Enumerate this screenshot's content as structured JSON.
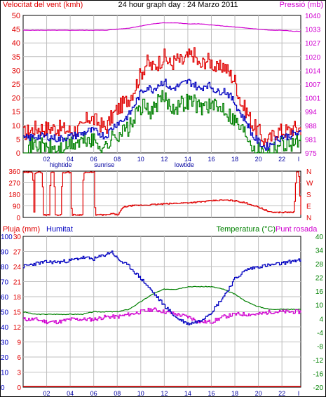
{
  "colors": {
    "wind": "#e00000",
    "gust": "#e00000",
    "speed_avg": "#0000c0",
    "speed_min": "#008000",
    "pressure": "#d000d0",
    "direction": "#e00000",
    "humidity": "#0000c0",
    "temperature": "#008000",
    "dewpoint": "#d000d0",
    "rain": "#e00000",
    "grid": "#bfbfbf",
    "frame": "#000000"
  },
  "chart_data": [
    {
      "type": "line",
      "title": "24 hour graph day : 24 Marzo 2011",
      "ylabel_left": "Velocitat del vent (kmh)",
      "ylabel_right": "Pressió (mb)",
      "ylim": [
        0,
        50
      ],
      "yticks_left": [
        "0",
        "5",
        "10",
        "15",
        "20",
        "25",
        "30",
        "35",
        "40",
        "45",
        "50"
      ],
      "yticks_right": [
        "975",
        "981",
        "988",
        "994",
        "1001",
        "1007",
        "1014",
        "1020",
        "1027",
        "1033",
        "1040"
      ],
      "ylim_right": [
        975,
        1040
      ],
      "xlim": [
        0,
        23.6
      ],
      "xticks": [
        "02",
        "04",
        "06",
        "08",
        "10",
        "12",
        "14",
        "16",
        "18",
        "20",
        "22",
        "I"
      ],
      "events": [
        {
          "label": "hightide",
          "x": 3.2
        },
        {
          "label": "sunrise",
          "x": 6.9
        },
        {
          "label": "lowtide",
          "x": 13.7
        }
      ],
      "series": [
        {
          "key": "gust",
          "x": [
            0,
            1,
            2,
            3,
            4,
            5,
            5.5,
            6,
            7,
            7.5,
            8,
            8.5,
            9,
            9.5,
            10,
            10.5,
            11,
            11.5,
            12,
            12.5,
            13,
            13.5,
            14,
            14.5,
            15,
            15.5,
            16,
            16.5,
            17,
            17.5,
            18,
            18.5,
            19,
            19.5,
            20,
            20.5,
            21,
            21.5,
            22,
            22.5,
            23,
            23.6
          ],
          "values": [
            7,
            9,
            9,
            9,
            8,
            9,
            13,
            12,
            9,
            13,
            16,
            18,
            20,
            24,
            29,
            33,
            31,
            33,
            35,
            32,
            34,
            33,
            35,
            36,
            31,
            34,
            33,
            30,
            32,
            29,
            26,
            18,
            15,
            10,
            8,
            4,
            5,
            8,
            8,
            8,
            9,
            9
          ]
        },
        {
          "key": "speed_avg",
          "x": [
            0,
            1,
            2,
            3,
            4,
            5,
            5.5,
            6,
            7,
            7.5,
            8,
            8.5,
            9,
            9.5,
            10,
            10.5,
            11,
            11.5,
            12,
            12.5,
            13,
            13.5,
            14,
            14.5,
            15,
            15.5,
            16,
            16.5,
            17,
            17.5,
            18,
            18.5,
            19,
            19.5,
            20,
            20.5,
            21,
            21.5,
            22,
            22.5,
            23,
            23.6
          ],
          "values": [
            5,
            6,
            6,
            5,
            6,
            7,
            8,
            8,
            6,
            9,
            11,
            12,
            14,
            18,
            22,
            24,
            23,
            25,
            26,
            23,
            24,
            25,
            26,
            25,
            23,
            25,
            24,
            22,
            23,
            21,
            18,
            14,
            11,
            6,
            4,
            2,
            3,
            5,
            6,
            6,
            7,
            7
          ]
        },
        {
          "key": "speed_min",
          "x": [
            0,
            1,
            2,
            3,
            4,
            5,
            5.5,
            6,
            7,
            7.5,
            8,
            8.5,
            9,
            9.5,
            10,
            10.5,
            11,
            11.5,
            12,
            12.5,
            13,
            13.5,
            14,
            14.5,
            15,
            15.5,
            16,
            16.5,
            17,
            17.5,
            18,
            18.5,
            19,
            19.5,
            20,
            20.5,
            21,
            21.5,
            22,
            22.5,
            23,
            23.6
          ],
          "values": [
            2,
            3,
            2,
            1,
            3,
            4,
            5,
            4,
            2,
            5,
            7,
            8,
            9,
            13,
            17,
            16,
            15,
            19,
            20,
            17,
            17,
            18,
            19,
            19,
            16,
            18,
            17,
            16,
            17,
            14,
            12,
            9,
            7,
            3,
            1,
            0,
            1,
            3,
            4,
            3,
            4,
            4
          ]
        },
        {
          "key": "pressure",
          "x": [
            0,
            2,
            4,
            6,
            7,
            8,
            9,
            10,
            11,
            12,
            13,
            14,
            15,
            16,
            17,
            18,
            19,
            20,
            21,
            22,
            23,
            23.6
          ],
          "values": [
            1033,
            1033,
            1033,
            1033,
            1033,
            1033.5,
            1034,
            1035,
            1036,
            1036.5,
            1036.5,
            1036,
            1036,
            1035.5,
            1035,
            1034.5,
            1034,
            1033.5,
            1033,
            1033,
            1032.5,
            1032.5
          ]
        }
      ]
    },
    {
      "type": "line",
      "yticks_left": [
        "0",
        "90",
        "180",
        "270",
        "360"
      ],
      "ylim": [
        0,
        360
      ],
      "yticks_right": [
        "N",
        "E",
        "S",
        "W",
        "N"
      ],
      "series": [
        {
          "key": "direction",
          "x": [
            0,
            0.8,
            0.9,
            1,
            1.6,
            1.7,
            2.2,
            2.3,
            2.6,
            2.7,
            3.2,
            3.3,
            4,
            4.1,
            5,
            5.1,
            6,
            6.1,
            6.8,
            7.2,
            7.5,
            8,
            8.5,
            9,
            10,
            11,
            12,
            13,
            14,
            15,
            16,
            17,
            18,
            19,
            20,
            20.5,
            21,
            22,
            23,
            23.2,
            23.4,
            23.6
          ],
          "values": [
            350,
            350,
            20,
            350,
            350,
            20,
            20,
            350,
            350,
            20,
            20,
            350,
            350,
            20,
            20,
            350,
            350,
            20,
            20,
            20,
            30,
            20,
            80,
            90,
            95,
            100,
            105,
            110,
            115,
            120,
            130,
            135,
            130,
            110,
            80,
            60,
            40,
            40,
            40,
            350,
            350,
            20
          ]
        }
      ]
    },
    {
      "type": "line",
      "ylabel_left_1": "Pluja (mm)",
      "ylabel_left_2": "Humitat",
      "ylabel_right": "Temperatura (°C)",
      "ylabel_right_2": "Punt rosada",
      "yticks_rain": [
        "0",
        "3",
        "6",
        "9",
        "12",
        "15",
        "18",
        "21",
        "24",
        "27",
        "30"
      ],
      "yticks_hum": [
        "0",
        "10",
        "20",
        "30",
        "40",
        "50",
        "60",
        "70",
        "80",
        "90",
        "100"
      ],
      "yticks_temp": [
        "-20",
        "-16",
        "-12",
        "-8",
        "-4",
        "4",
        "10",
        "16",
        "22",
        "28",
        "34",
        "40"
      ],
      "series": [
        {
          "key": "humidity",
          "x": [
            0,
            1,
            2,
            3,
            4,
            5,
            6,
            7,
            7.5,
            8,
            9,
            10,
            11,
            12,
            13,
            14,
            15,
            16,
            17,
            18,
            19,
            20,
            21,
            22,
            23,
            23.6
          ],
          "values": [
            80,
            82,
            83,
            83,
            84,
            86,
            85,
            88,
            90,
            85,
            80,
            72,
            63,
            54,
            46,
            42,
            44,
            50,
            60,
            72,
            78,
            80,
            81,
            82,
            84,
            84
          ]
        },
        {
          "key": "temperature",
          "x": [
            0,
            1,
            2,
            3,
            4,
            5,
            6,
            7,
            8,
            9,
            10,
            11,
            12,
            13,
            14,
            15,
            16,
            17,
            18,
            19,
            20,
            21,
            22,
            23,
            23.6
          ],
          "values": [
            10,
            9,
            9,
            9,
            9,
            9,
            10,
            10,
            10,
            11,
            14,
            17,
            19,
            19,
            20,
            20,
            20,
            19,
            17,
            14,
            12,
            11,
            11,
            11,
            11
          ]
        },
        {
          "key": "dewpoint",
          "x": [
            0,
            1,
            2,
            3,
            4,
            5,
            6,
            7,
            8,
            9,
            10,
            11,
            12,
            13,
            14,
            15,
            16,
            17,
            18,
            19,
            20,
            21,
            22,
            23,
            23.6
          ],
          "values": [
            7,
            7,
            6,
            6,
            7,
            7,
            7,
            8,
            8,
            9,
            10,
            11,
            10,
            9,
            8,
            6,
            6,
            8,
            9,
            9,
            9,
            10,
            10,
            10,
            10
          ]
        },
        {
          "key": "rain",
          "x": [
            0,
            23.6
          ],
          "values": [
            0,
            0
          ]
        }
      ]
    }
  ]
}
